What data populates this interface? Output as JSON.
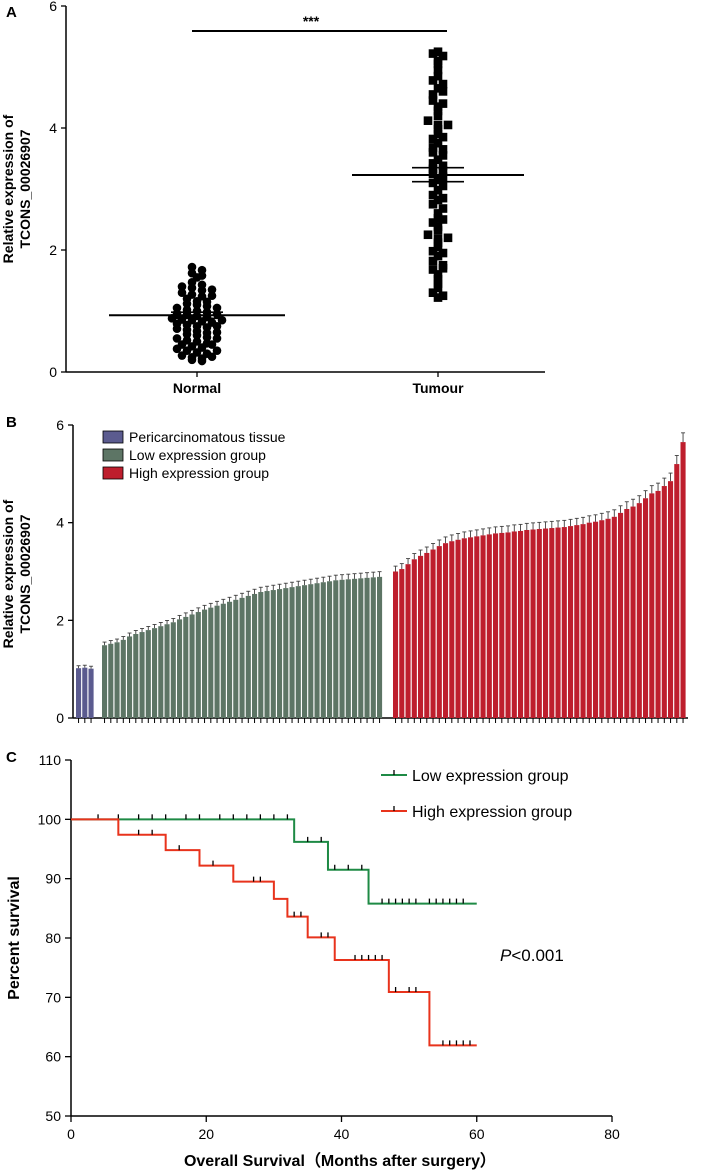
{
  "colors": {
    "axis": "#000000",
    "pericarcinomatous": "#5B5B8F",
    "low_expression": "#5D7565",
    "high_expression": "#BE1E2D",
    "error_bar": "#404040",
    "km_low": "#1E8A45",
    "km_high": "#E8331C"
  },
  "chart_data": [
    {
      "panel": "A",
      "type": "scatter",
      "ylabel": [
        "Relative expression of",
        "TCONS_00026907"
      ],
      "ylim": [
        0,
        6
      ],
      "yticks": [
        "0",
        "2",
        "4",
        "6"
      ],
      "categories": [
        "Normal",
        "Tumour"
      ],
      "significance": "***",
      "groups": [
        {
          "name": "Normal",
          "marker": "circle",
          "mean": 0.93,
          "sem_upper": 0.98,
          "sem_lower": 0.88,
          "values": [
            1.72,
            1.67,
            1.62,
            1.58,
            1.55,
            1.47,
            1.43,
            1.4,
            1.38,
            1.34,
            1.3,
            1.27,
            1.24,
            1.2,
            1.16,
            1.12,
            1.1,
            1.08,
            1.05,
            1.02,
            1.0,
            0.98,
            0.96,
            0.94,
            0.92,
            0.9,
            0.88,
            0.86,
            0.85,
            0.83,
            0.81,
            0.79,
            0.77,
            0.75,
            0.73,
            0.71,
            0.69,
            0.67,
            0.64,
            0.62,
            0.6,
            0.57,
            0.55,
            0.52,
            0.5,
            0.47,
            0.45,
            0.42,
            0.4,
            0.38,
            0.35,
            0.32,
            0.3,
            0.27,
            0.24,
            0.22,
            0.2,
            0.18,
            1.35,
            1.25,
            1.15,
            1.05,
            0.95,
            0.85,
            0.75,
            0.65,
            0.55,
            0.45,
            0.35,
            0.25
          ]
        },
        {
          "name": "Tumour",
          "marker": "square",
          "mean": 3.23,
          "sem_upper": 3.35,
          "sem_lower": 3.12,
          "values": [
            5.25,
            5.22,
            5.18,
            5.1,
            5.05,
            4.95,
            4.85,
            4.78,
            4.72,
            4.65,
            4.55,
            4.45,
            4.4,
            4.35,
            4.28,
            4.2,
            4.12,
            4.05,
            3.98,
            3.9,
            3.82,
            3.75,
            3.68,
            3.6,
            3.55,
            3.48,
            3.42,
            3.38,
            3.33,
            3.3,
            3.25,
            3.2,
            3.15,
            3.1,
            3.05,
            2.98,
            2.9,
            2.82,
            2.75,
            2.68,
            2.6,
            2.52,
            2.45,
            2.38,
            2.32,
            2.25,
            2.18,
            2.12,
            2.05,
            1.98,
            1.9,
            1.82,
            1.75,
            1.68,
            1.6,
            1.52,
            1.45,
            1.38,
            1.3,
            1.25,
            1.22,
            4.05,
            3.65,
            2.85,
            2.2,
            1.7,
            4.6,
            3.85,
            2.5,
            1.95
          ]
        }
      ]
    },
    {
      "panel": "B",
      "type": "bar",
      "ylabel": [
        "Relative expression of",
        "TCONS_00026907"
      ],
      "ylim": [
        0,
        6
      ],
      "yticks": [
        "0",
        "2",
        "4",
        "6"
      ],
      "legend": [
        "Pericarcinomatous tissue",
        "Low expression group",
        "High expression group"
      ],
      "series": [
        {
          "name": "Pericarcinomatous tissue",
          "values": [
            1.02,
            1.03,
            1.01
          ]
        },
        {
          "name": "Low expression group",
          "values": [
            1.49,
            1.52,
            1.55,
            1.6,
            1.67,
            1.72,
            1.76,
            1.8,
            1.84,
            1.88,
            1.92,
            1.96,
            2.02,
            2.07,
            2.12,
            2.17,
            2.22,
            2.26,
            2.3,
            2.34,
            2.38,
            2.42,
            2.46,
            2.5,
            2.54,
            2.58,
            2.6,
            2.62,
            2.64,
            2.66,
            2.68,
            2.7,
            2.72,
            2.74,
            2.76,
            2.78,
            2.8,
            2.82,
            2.83,
            2.84,
            2.85,
            2.86,
            2.87,
            2.88,
            2.89
          ]
        },
        {
          "name": "High expression group",
          "values": [
            3.0,
            3.05,
            3.15,
            3.25,
            3.32,
            3.38,
            3.45,
            3.52,
            3.58,
            3.62,
            3.65,
            3.68,
            3.7,
            3.72,
            3.74,
            3.76,
            3.78,
            3.79,
            3.8,
            3.82,
            3.83,
            3.85,
            3.86,
            3.87,
            3.88,
            3.89,
            3.9,
            3.91,
            3.93,
            3.95,
            3.97,
            4.0,
            4.02,
            4.05,
            4.08,
            4.12,
            4.2,
            4.28,
            4.33,
            4.4,
            4.5,
            4.6,
            4.65,
            4.75,
            4.85,
            5.2,
            5.65
          ]
        }
      ]
    },
    {
      "panel": "C",
      "type": "line",
      "xlabel": "Overall Survival（Months after surgery）",
      "ylabel": "Percent survival",
      "xlim": [
        0,
        80
      ],
      "ylim": [
        50,
        110
      ],
      "xticks": [
        "0",
        "20",
        "40",
        "60",
        "80"
      ],
      "yticks": [
        "50",
        "60",
        "70",
        "80",
        "90",
        "100",
        "110"
      ],
      "annotation": {
        "italic": "P",
        "rest": "<0.001"
      },
      "series": [
        {
          "name": "Low expression group",
          "steps": [
            [
              0,
              100
            ],
            [
              33,
              96.2
            ],
            [
              38,
              91.5
            ],
            [
              44,
              85.8
            ],
            [
              60,
              85.8
            ]
          ],
          "censor_x": [
            4,
            7,
            10,
            12,
            14,
            17,
            19,
            22,
            24,
            26,
            28,
            30,
            32,
            35,
            37,
            39,
            41,
            43,
            46,
            47,
            48,
            49,
            50,
            51,
            53,
            54,
            55,
            56,
            57,
            58
          ]
        },
        {
          "name": "High expression group",
          "steps": [
            [
              0,
              100
            ],
            [
              7,
              97.4
            ],
            [
              14,
              94.8
            ],
            [
              19,
              92.2
            ],
            [
              24,
              89.5
            ],
            [
              30,
              86.6
            ],
            [
              32,
              83.6
            ],
            [
              35,
              80.1
            ],
            [
              39,
              76.3
            ],
            [
              47,
              70.9
            ],
            [
              53,
              61.9
            ],
            [
              60,
              61.9
            ]
          ],
          "censor_x": [
            10,
            12,
            16,
            21,
            27,
            28,
            33,
            34,
            37,
            38,
            42,
            43,
            44,
            45,
            46,
            48,
            50,
            51,
            55,
            56,
            57,
            58,
            59
          ]
        }
      ]
    }
  ]
}
